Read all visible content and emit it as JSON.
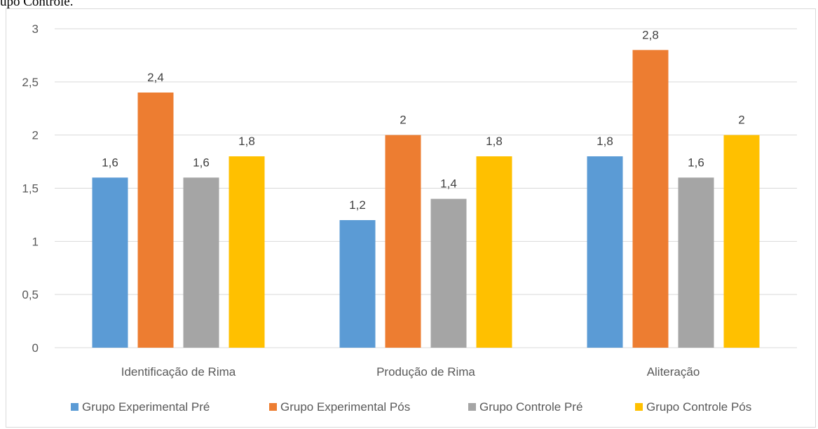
{
  "caption": "upo Controle.",
  "chart_data": {
    "type": "bar",
    "categories": [
      "Identificação de Rima",
      "Produção de Rima",
      "Aliteração"
    ],
    "series": [
      {
        "name": "Grupo Experimental Pré",
        "color": "#5B9BD5",
        "values": [
          1.6,
          1.2,
          1.8
        ],
        "labels": [
          "1,6",
          "1,2",
          "1,8"
        ]
      },
      {
        "name": "Grupo Experimental Pós",
        "color": "#ED7D31",
        "values": [
          2.4,
          2.0,
          2.8
        ],
        "labels": [
          "2,4",
          "2",
          "2,8"
        ]
      },
      {
        "name": "Grupo Controle Pré",
        "color": "#A5A5A5",
        "values": [
          1.6,
          1.4,
          1.6
        ],
        "labels": [
          "1,6",
          "1,4",
          "1,6"
        ]
      },
      {
        "name": "Grupo Controle Pós",
        "color": "#FFC000",
        "values": [
          1.8,
          1.8,
          2.0
        ],
        "labels": [
          "1,8",
          "1,8",
          "2"
        ]
      }
    ],
    "ylim": [
      0,
      3
    ],
    "yticks": [
      0,
      0.5,
      1,
      1.5,
      2,
      2.5,
      3
    ],
    "ytick_labels": [
      "0",
      "0,5",
      "1",
      "1,5",
      "2",
      "2,5",
      "3"
    ],
    "grid": true,
    "legend_position": "bottom"
  }
}
